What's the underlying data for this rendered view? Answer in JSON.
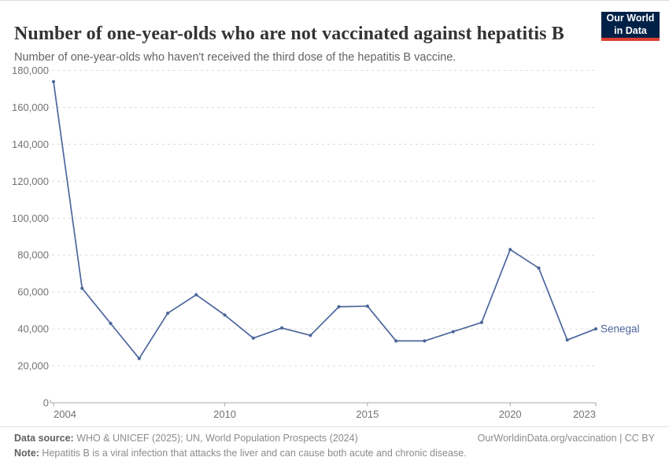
{
  "logo": {
    "line1": "Our World",
    "line2": "in Data",
    "bg_color": "#002147",
    "accent_color": "#dc3e32"
  },
  "chart_data": {
    "type": "line",
    "title": "Number of one-year-olds who are not vaccinated against hepatitis B",
    "subtitle": "Number of one-year-olds who haven't received the third dose of the hepatitis B vaccine.",
    "x": [
      2004,
      2005,
      2006,
      2007,
      2008,
      2009,
      2010,
      2011,
      2012,
      2013,
      2014,
      2015,
      2016,
      2017,
      2018,
      2019,
      2020,
      2021,
      2022,
      2023
    ],
    "series": [
      {
        "name": "Senegal",
        "color": "#4c669c",
        "values": [
          173900,
          62000,
          43000,
          24000,
          48500,
          58500,
          47500,
          35000,
          40500,
          36500,
          52000,
          52300,
          33500,
          33500,
          38500,
          43500,
          83000,
          73000,
          34000,
          40000
        ]
      }
    ],
    "xlabel": "",
    "ylabel": "",
    "ylim": [
      0,
      180000
    ],
    "yticks": [
      0,
      20000,
      40000,
      60000,
      80000,
      100000,
      120000,
      140000,
      160000,
      180000
    ],
    "xticks": [
      2004,
      2010,
      2015,
      2020,
      2023
    ],
    "grid": "horizontal-dashed",
    "legend_position": "end-of-line-label",
    "colors": {
      "gridline": "#dcdcdc",
      "axis": "#a8a8a8",
      "tick_label": "#737373"
    }
  },
  "footer": {
    "datasource_label": "Data source:",
    "datasource_text": " WHO & UNICEF (2025); UN, World Population Prospects (2024)",
    "link_text": "OurWorldinData.org/vaccination | CC BY",
    "note_label": "Note:",
    "note_text": " Hepatitis B is a viral infection that attacks the liver and can cause both acute and chronic disease."
  }
}
